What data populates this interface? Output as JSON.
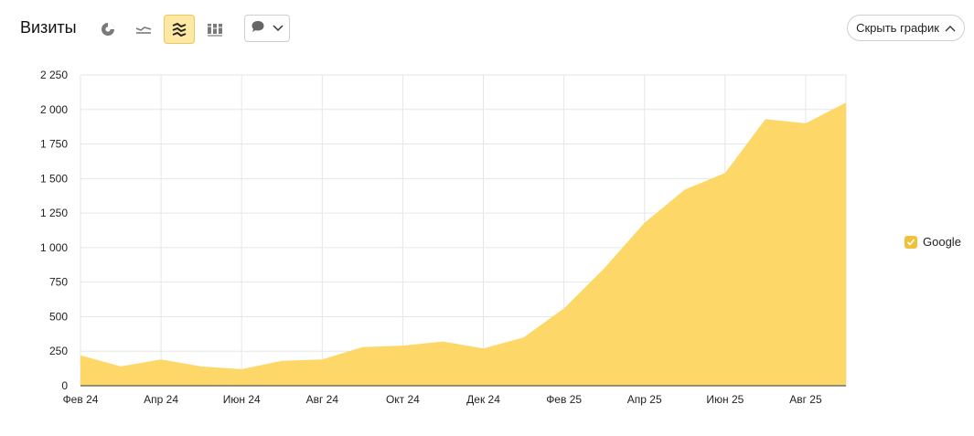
{
  "header": {
    "title": "Визиты",
    "hide_chart_label": "Скрыть график"
  },
  "toolbar_icons": [
    "pie-chart-icon",
    "line-chart-icon",
    "area-chart-icon",
    "bar-chart-icon",
    "comment-icon",
    "chevron-down-icon"
  ],
  "colors": {
    "area_fill": "#fdd868",
    "active_button_bg": "#ffe8a3",
    "grid": "#e6e6e6",
    "legend_check": "#f0c23c"
  },
  "chart_data": {
    "type": "area",
    "x_tick_labels": [
      "Фев 24",
      "Апр 24",
      "Июн 24",
      "Авг 24",
      "Окт 24",
      "Дек 24",
      "Фев 25",
      "Апр 25",
      "Июн 25",
      "Авг 25"
    ],
    "x": [
      "2024-02",
      "2024-03",
      "2024-04",
      "2024-05",
      "2024-06",
      "2024-07",
      "2024-08",
      "2024-09",
      "2024-10",
      "2024-11",
      "2024-12",
      "2025-01",
      "2025-02",
      "2025-03",
      "2025-04",
      "2025-05",
      "2025-06",
      "2025-07",
      "2025-08",
      "2025-09"
    ],
    "series": [
      {
        "name": "Google",
        "values": [
          220,
          140,
          190,
          140,
          120,
          180,
          190,
          280,
          290,
          320,
          270,
          350,
          560,
          850,
          1180,
          1420,
          1540,
          1930,
          1900,
          2050
        ]
      }
    ],
    "y_tick_labels": [
      "0",
      "250",
      "500",
      "750",
      "1 000",
      "1 250",
      "1 500",
      "1 750",
      "2 000",
      "2 250"
    ],
    "y_ticks": [
      0,
      250,
      500,
      750,
      1000,
      1250,
      1500,
      1750,
      2000,
      2250
    ],
    "ylim": [
      0,
      2250
    ],
    "grid": true,
    "legend_position": "right"
  }
}
